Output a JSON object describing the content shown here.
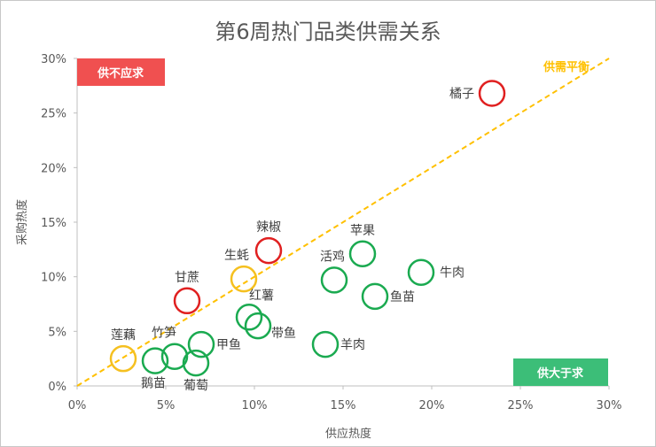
{
  "chart_data": {
    "type": "scatter",
    "title": "第6周热门品类供需关系",
    "xlabel": "供应热度",
    "ylabel": "采购热度",
    "xlim": [
      0,
      0.3
    ],
    "ylim": [
      0,
      0.3
    ],
    "x_ticks": [
      "0%",
      "5%",
      "10%",
      "15%",
      "20%",
      "25%",
      "30%"
    ],
    "y_ticks": [
      "0%",
      "5%",
      "10%",
      "15%",
      "20%",
      "25%",
      "30%"
    ],
    "grid": false,
    "balance_line": {
      "label": "供需平衡",
      "color": "#FFC000"
    },
    "region_labels": {
      "top_left": {
        "text": "供不应求",
        "color": "#F05050"
      },
      "bottom_right": {
        "text": "供大于求",
        "color": "#3CBE78"
      }
    },
    "status_colors": {
      "shortage": "#E02020",
      "balanced": "#F5C020",
      "surplus": "#1AAA50"
    },
    "points": [
      {
        "label": "橘子",
        "x": 0.234,
        "y": 0.268,
        "status": "shortage"
      },
      {
        "label": "辣椒",
        "x": 0.108,
        "y": 0.124,
        "status": "shortage"
      },
      {
        "label": "甘蔗",
        "x": 0.062,
        "y": 0.078,
        "status": "shortage"
      },
      {
        "label": "生蚝",
        "x": 0.094,
        "y": 0.098,
        "status": "balanced"
      },
      {
        "label": "莲藕",
        "x": 0.026,
        "y": 0.025,
        "status": "balanced"
      },
      {
        "label": "苹果",
        "x": 0.161,
        "y": 0.121,
        "status": "surplus"
      },
      {
        "label": "活鸡",
        "x": 0.145,
        "y": 0.097,
        "status": "surplus"
      },
      {
        "label": "牛肉",
        "x": 0.194,
        "y": 0.104,
        "status": "surplus"
      },
      {
        "label": "鱼苗",
        "x": 0.168,
        "y": 0.082,
        "status": "surplus"
      },
      {
        "label": "红薯",
        "x": 0.097,
        "y": 0.063,
        "status": "surplus"
      },
      {
        "label": "带鱼",
        "x": 0.102,
        "y": 0.055,
        "status": "surplus"
      },
      {
        "label": "羊肉",
        "x": 0.14,
        "y": 0.038,
        "status": "surplus"
      },
      {
        "label": "甲鱼",
        "x": 0.07,
        "y": 0.038,
        "status": "surplus"
      },
      {
        "label": "竹笋",
        "x": 0.055,
        "y": 0.027,
        "status": "surplus"
      },
      {
        "label": "鹅苗",
        "x": 0.044,
        "y": 0.023,
        "status": "surplus"
      },
      {
        "label": "葡萄",
        "x": 0.067,
        "y": 0.021,
        "status": "surplus"
      }
    ]
  }
}
